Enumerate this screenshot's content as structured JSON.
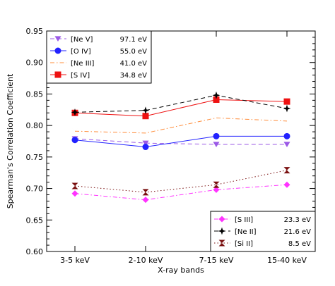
{
  "chart_data": {
    "type": "line",
    "title": "",
    "xlabel": "X-ray bands",
    "ylabel": "Spearman's Correlation Coefficient",
    "categories": [
      "3-5 keV",
      "2-10 keV",
      "7-15 keV",
      "15-40 keV"
    ],
    "ylim": [
      0.6,
      0.95
    ],
    "yticks": [
      "0.60",
      "0.65",
      "0.70",
      "0.75",
      "0.80",
      "0.85",
      "0.90",
      "0.95"
    ],
    "grid": false,
    "legends": [
      {
        "placement": "top-left",
        "entries": [
          {
            "series": 0,
            "name": "[Ne V]",
            "energy": "97.1 eV"
          },
          {
            "series": 1,
            "name": "[O IV]",
            "energy": "55.0 eV"
          },
          {
            "series": 2,
            "name": "[Ne III]",
            "energy": "41.0 eV"
          },
          {
            "series": 3,
            "name": "[S IV]",
            "energy": "34.8 eV"
          }
        ]
      },
      {
        "placement": "bottom-right",
        "entries": [
          {
            "series": 4,
            "name": "[S III]",
            "energy": "23.3 eV"
          },
          {
            "series": 5,
            "name": "[Ne II]",
            "energy": "21.6 eV"
          },
          {
            "series": 6,
            "name": "[Si II]",
            "energy": "8.5 eV"
          }
        ]
      }
    ],
    "series": [
      {
        "name": "[Ne V] 97.1 eV",
        "values": [
          0.779,
          0.772,
          0.77,
          0.77
        ],
        "color": "#9b59e6",
        "dash": "dashed",
        "marker": "triangle-down"
      },
      {
        "name": "[O IV] 55.0 eV",
        "values": [
          0.777,
          0.766,
          0.783,
          0.783
        ],
        "color": "#2222ff",
        "dash": "solid",
        "marker": "circle"
      },
      {
        "name": "[Ne III] 41.0 eV",
        "values": [
          0.791,
          0.788,
          0.812,
          0.807
        ],
        "color": "#ff8c3a",
        "dash": "dashdot",
        "marker": "bowtie"
      },
      {
        "name": "[S IV] 34.8 eV",
        "values": [
          0.82,
          0.815,
          0.841,
          0.838
        ],
        "color": "#ee1111",
        "dash": "solid",
        "marker": "square"
      },
      {
        "name": "[S III] 23.3 eV",
        "values": [
          0.692,
          0.682,
          0.698,
          0.706
        ],
        "color": "#ff33ff",
        "dash": "dashdot",
        "marker": "diamond"
      },
      {
        "name": "[Ne II] 21.6 eV",
        "values": [
          0.821,
          0.824,
          0.848,
          0.827
        ],
        "color": "#000000",
        "dash": "dashed",
        "marker": "star4"
      },
      {
        "name": "[Si II] 8.5 eV",
        "values": [
          0.704,
          0.694,
          0.706,
          0.729
        ],
        "color": "#7a1010",
        "dash": "dotted",
        "marker": "hourglass"
      }
    ]
  }
}
